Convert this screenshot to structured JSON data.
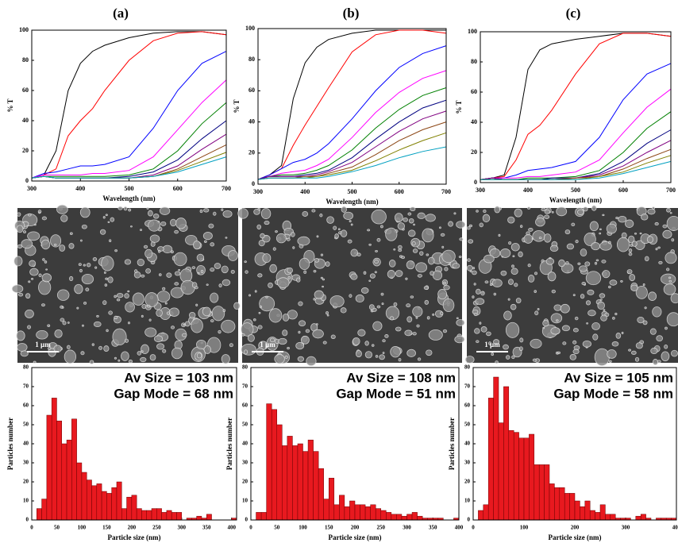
{
  "chart_data": [
    {
      "type": "line",
      "title": "(a)",
      "x_label": "Wavelength (nm)",
      "y_label": "% T",
      "x": [
        300,
        325,
        350,
        375,
        400,
        425,
        450,
        500,
        550,
        600,
        650,
        700
      ],
      "xlim": [
        300,
        700
      ],
      "xticks": [
        300,
        400,
        500,
        600,
        700
      ],
      "ylim": [
        0,
        100
      ],
      "yticks": [
        0,
        20,
        40,
        60,
        80,
        100
      ],
      "series": [
        {
          "color": "#000000",
          "values": [
            2,
            4,
            20,
            60,
            78,
            86,
            90,
            95,
            98,
            99,
            99,
            97
          ]
        },
        {
          "color": "#ff0000",
          "values": [
            2,
            4,
            8,
            30,
            40,
            48,
            60,
            80,
            93,
            98,
            99,
            97
          ]
        },
        {
          "color": "#0000ff",
          "values": [
            2,
            5,
            6,
            8,
            10,
            10,
            11,
            16,
            35,
            60,
            78,
            86
          ]
        },
        {
          "color": "#ff00ff",
          "values": [
            2,
            4,
            4,
            4,
            4,
            5,
            5,
            7,
            16,
            34,
            52,
            67
          ]
        },
        {
          "color": "#008000",
          "values": [
            2,
            3,
            3,
            3,
            3,
            3,
            3,
            4,
            8,
            20,
            38,
            52
          ]
        },
        {
          "color": "#000080",
          "values": [
            2,
            3,
            2,
            2,
            2,
            2,
            2,
            3,
            6,
            14,
            28,
            40
          ]
        },
        {
          "color": "#800080",
          "values": [
            2,
            3,
            2,
            2,
            2,
            2,
            2,
            2,
            4,
            10,
            21,
            31
          ]
        },
        {
          "color": "#8b4513",
          "values": [
            2,
            3,
            2,
            2,
            2,
            2,
            2,
            2,
            3,
            8,
            16,
            24
          ]
        },
        {
          "color": "#808000",
          "values": [
            2,
            3,
            2,
            2,
            2,
            2,
            2,
            2,
            3,
            7,
            13,
            19
          ]
        },
        {
          "color": "#00a0c0",
          "values": [
            2,
            3,
            2,
            2,
            2,
            2,
            2,
            2,
            3,
            6,
            11,
            16
          ]
        }
      ]
    },
    {
      "type": "line",
      "title": "(b)",
      "x_label": "Wavelength (nm)",
      "y_label": "% T",
      "x": [
        300,
        325,
        350,
        375,
        400,
        425,
        450,
        500,
        550,
        600,
        650,
        700
      ],
      "xlim": [
        300,
        700
      ],
      "xticks": [
        300,
        400,
        500,
        600,
        700
      ],
      "ylim": [
        0,
        100
      ],
      "yticks": [
        0,
        20,
        40,
        60,
        80,
        100
      ],
      "series": [
        {
          "color": "#000000",
          "values": [
            3,
            6,
            12,
            55,
            78,
            88,
            93,
            97,
            99,
            99,
            99,
            99
          ]
        },
        {
          "color": "#ff0000",
          "values": [
            3,
            6,
            10,
            25,
            38,
            50,
            62,
            85,
            96,
            99,
            99,
            97
          ]
        },
        {
          "color": "#0000ff",
          "values": [
            3,
            6,
            10,
            14,
            16,
            20,
            26,
            42,
            60,
            75,
            84,
            89
          ]
        },
        {
          "color": "#ff00ff",
          "values": [
            3,
            5,
            7,
            8,
            9,
            12,
            16,
            30,
            46,
            59,
            68,
            73
          ]
        },
        {
          "color": "#008000",
          "values": [
            3,
            5,
            6,
            6,
            7,
            9,
            12,
            22,
            36,
            48,
            57,
            62
          ]
        },
        {
          "color": "#000080",
          "values": [
            3,
            5,
            5,
            5,
            6,
            7,
            9,
            17,
            29,
            40,
            49,
            54
          ]
        },
        {
          "color": "#800080",
          "values": [
            3,
            5,
            5,
            5,
            5,
            6,
            8,
            14,
            24,
            34,
            42,
            47
          ]
        },
        {
          "color": "#8b4513",
          "values": [
            3,
            4,
            4,
            4,
            5,
            5,
            7,
            11,
            19,
            28,
            35,
            40
          ]
        },
        {
          "color": "#808000",
          "values": [
            3,
            4,
            4,
            4,
            4,
            5,
            6,
            9,
            15,
            22,
            28,
            33
          ]
        },
        {
          "color": "#00a0c0",
          "values": [
            3,
            4,
            4,
            4,
            4,
            4,
            5,
            8,
            12,
            17,
            21,
            24
          ]
        }
      ]
    },
    {
      "type": "line",
      "title": "(c)",
      "x_label": "Wavelength (nm)",
      "y_label": "% T",
      "x": [
        300,
        325,
        350,
        375,
        400,
        425,
        450,
        500,
        550,
        600,
        650,
        700
      ],
      "xlim": [
        300,
        700
      ],
      "xticks": [
        300,
        400,
        500,
        600,
        700
      ],
      "ylim": [
        0,
        100
      ],
      "yticks": [
        0,
        20,
        40,
        60,
        80,
        100
      ],
      "series": [
        {
          "color": "#000000",
          "values": [
            2,
            3,
            5,
            30,
            75,
            88,
            92,
            95,
            97,
            99,
            99,
            97
          ]
        },
        {
          "color": "#ff0000",
          "values": [
            2,
            3,
            4,
            15,
            32,
            38,
            48,
            72,
            92,
            99,
            99,
            97
          ]
        },
        {
          "color": "#0000ff",
          "values": [
            2,
            3,
            3,
            5,
            8,
            9,
            10,
            14,
            30,
            55,
            72,
            79
          ]
        },
        {
          "color": "#ff00ff",
          "values": [
            2,
            3,
            3,
            3,
            4,
            4,
            5,
            7,
            15,
            33,
            50,
            62
          ]
        },
        {
          "color": "#008000",
          "values": [
            2,
            3,
            2,
            2,
            3,
            3,
            3,
            4,
            8,
            20,
            36,
            47
          ]
        },
        {
          "color": "#000080",
          "values": [
            2,
            3,
            2,
            2,
            2,
            2,
            3,
            3,
            6,
            14,
            26,
            35
          ]
        },
        {
          "color": "#800080",
          "values": [
            2,
            3,
            2,
            2,
            2,
            2,
            2,
            3,
            5,
            11,
            20,
            28
          ]
        },
        {
          "color": "#8b4513",
          "values": [
            2,
            2,
            2,
            2,
            2,
            2,
            2,
            3,
            4,
            9,
            16,
            22
          ]
        },
        {
          "color": "#808000",
          "values": [
            2,
            2,
            2,
            2,
            2,
            2,
            2,
            2,
            4,
            7,
            13,
            18
          ]
        },
        {
          "color": "#00a0c0",
          "values": [
            2,
            2,
            2,
            2,
            2,
            2,
            2,
            2,
            3,
            6,
            10,
            14
          ]
        }
      ]
    },
    {
      "type": "histogram",
      "x_label": "Particle size (nm)",
      "y_label": "Particles number",
      "color": "#e8191f",
      "annotations": [
        "Av Size = 103 nm",
        "Gap Mode = 68 nm"
      ],
      "bins": [
        10,
        20,
        30,
        40,
        50,
        60,
        70,
        80,
        90,
        100,
        110,
        120,
        130,
        140,
        150,
        160,
        170,
        180,
        190,
        200,
        210,
        220,
        230,
        240,
        250,
        260,
        270,
        280,
        290,
        300,
        310,
        320,
        330,
        340,
        350,
        360,
        370,
        380,
        390,
        400,
        410
      ],
      "values": [
        6,
        11,
        55,
        64,
        52,
        40,
        42,
        53,
        30,
        25,
        21,
        18,
        19,
        15,
        14,
        17,
        20,
        6,
        12,
        13,
        6,
        5,
        5,
        6,
        6,
        4,
        5,
        4,
        4,
        0,
        1,
        1,
        2,
        1,
        3,
        0,
        0,
        0,
        0,
        1
      ],
      "xlim": [
        0,
        410
      ],
      "xticks": [
        0,
        50,
        100,
        150,
        200,
        250,
        300,
        350,
        400
      ],
      "ylim": [
        0,
        80
      ],
      "yticks": [
        0,
        10,
        20,
        30,
        40,
        50,
        60,
        70,
        80
      ]
    },
    {
      "type": "histogram",
      "x_label": "Particle size (nm)",
      "y_label": "Particles number",
      "color": "#e8191f",
      "annotations": [
        "Av Size = 108 nm",
        "Gap Mode = 51 nm"
      ],
      "bins": [
        10,
        20,
        30,
        40,
        50,
        60,
        70,
        80,
        90,
        100,
        110,
        120,
        130,
        140,
        150,
        160,
        170,
        180,
        190,
        200,
        210,
        220,
        230,
        240,
        250,
        260,
        270,
        280,
        290,
        300,
        310,
        320,
        330,
        340,
        350,
        360,
        370,
        380,
        390,
        400
      ],
      "values": [
        4,
        4,
        61,
        58,
        50,
        39,
        44,
        39,
        40,
        36,
        42,
        36,
        27,
        11,
        22,
        8,
        13,
        7,
        10,
        8,
        8,
        7,
        8,
        6,
        5,
        4,
        3,
        3,
        2,
        3,
        4,
        2,
        1,
        1,
        1,
        1,
        0,
        0,
        1
      ],
      "xlim": [
        0,
        400
      ],
      "xticks": [
        0,
        50,
        100,
        150,
        200,
        250,
        300,
        350,
        400
      ],
      "ylim": [
        0,
        80
      ],
      "yticks": [
        0,
        10,
        20,
        30,
        40,
        50,
        60,
        70,
        80
      ]
    },
    {
      "type": "histogram",
      "x_label": "Particle size (nm)",
      "y_label": "Particles number",
      "color": "#e8191f",
      "annotations": [
        "Av Size = 105 nm",
        "Gap Mode = 58 nm"
      ],
      "bins": [
        10,
        20,
        30,
        40,
        50,
        60,
        70,
        80,
        90,
        100,
        110,
        120,
        130,
        140,
        150,
        160,
        170,
        180,
        190,
        200,
        210,
        220,
        230,
        240,
        250,
        260,
        270,
        280,
        290,
        300,
        310,
        320,
        330,
        340,
        350,
        360,
        370,
        380,
        390,
        400
      ],
      "values": [
        5,
        8,
        64,
        75,
        51,
        70,
        47,
        46,
        43,
        43,
        45,
        29,
        29,
        29,
        19,
        17,
        17,
        14,
        14,
        10,
        7,
        10,
        5,
        4,
        8,
        3,
        3,
        1,
        1,
        1,
        0,
        2,
        3,
        1,
        0,
        1,
        1,
        1,
        1
      ],
      "xlim": [
        0,
        400
      ],
      "xticks": [
        0,
        100,
        200,
        300,
        400
      ],
      "ylim": [
        0,
        80
      ],
      "yticks": [
        0,
        10,
        20,
        30,
        40,
        50,
        60,
        70,
        80
      ]
    }
  ],
  "sem_images": [
    {
      "scale_label": "1 µm"
    },
    {
      "scale_label": "1 µm"
    },
    {
      "scale_label": "1 µm"
    }
  ]
}
